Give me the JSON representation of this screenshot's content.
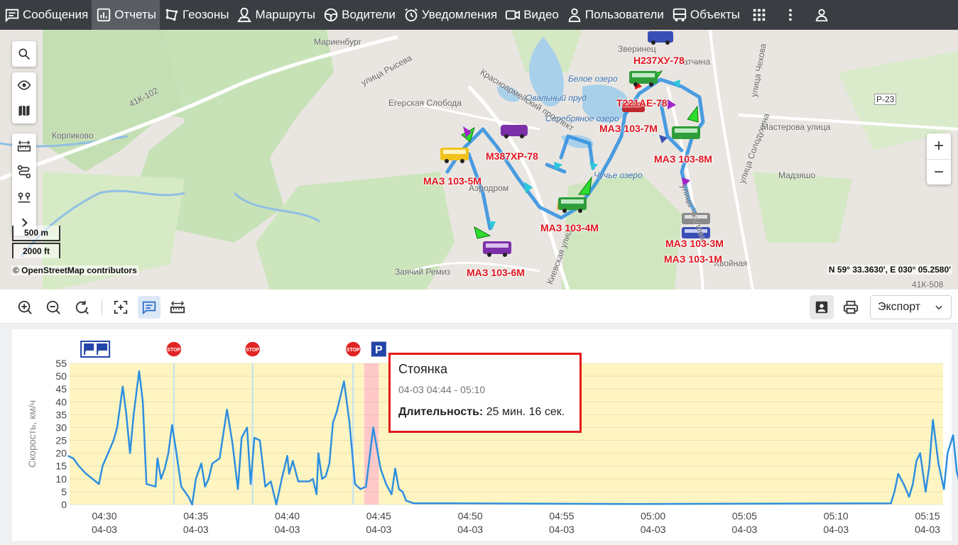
{
  "nav": {
    "items": [
      {
        "label": "Сообщения",
        "icon": "messages-icon"
      },
      {
        "label": "Отчеты",
        "icon": "reports-icon",
        "active": true
      },
      {
        "label": "Геозоны",
        "icon": "geozones-icon"
      },
      {
        "label": "Маршруты",
        "icon": "routes-icon"
      },
      {
        "label": "Водители",
        "icon": "drivers-icon"
      },
      {
        "label": "Уведомления",
        "icon": "alarm-clock-icon"
      },
      {
        "label": "Видео",
        "icon": "video-icon"
      },
      {
        "label": "Пользователи",
        "icon": "user-icon"
      },
      {
        "label": "Объекты",
        "icon": "bus-icon"
      }
    ],
    "extra_icons": [
      "apps-grid-icon",
      "more-vertical-icon",
      "account-icon"
    ]
  },
  "map": {
    "place_labels": [
      "Мариенбург",
      "улица Рысева",
      "41К-102",
      "Корпиково",
      "Егерская Слобода",
      "Овальный пруд",
      "Серебряное озеро",
      "Красноармейский проспект",
      "Белое озеро",
      "Мастерова улица",
      "улица Солодухина",
      "улица Чкалова",
      "Заячий Ремиз",
      "Р-23",
      "41К-508",
      "Зверинец",
      "улица Чехова",
      "Гатчина",
      "Киевская улица",
      "Аэродром",
      "Чучье озеро",
      "Мадзяшо",
      "Хвойная"
    ],
    "vehicles": [
      {
        "label": "Н237ХУ-78",
        "color": "#3a4fb5"
      },
      {
        "label": "Т221АЕ-78",
        "color": "#c0262e"
      },
      {
        "label": "МАЗ 103-7М",
        "color": "#2f9d3a"
      },
      {
        "label": "М387ХР-78",
        "color": "#7b2fa8"
      },
      {
        "label": "МАЗ 103-8М",
        "color": "#2f9d3a"
      },
      {
        "label": "МАЗ 103-5М",
        "color": "#f2c21c"
      },
      {
        "label": "МАЗ 103-4М",
        "color": "#2f9d3a"
      },
      {
        "label": "МАЗ 103-3М",
        "color": "#3a4fb5"
      },
      {
        "label": "МАЗ 103-1М",
        "color": "#888888"
      },
      {
        "label": "МАЗ 103-6М",
        "color": "#7b2fa8"
      }
    ],
    "scale_m": "500 m",
    "scale_ft": "2000 ft",
    "attribution": "© OpenStreetMap contributors",
    "coords": "N 59° 33.3630', E 030° 05.2580'",
    "zoom_in": "+",
    "zoom_out": "−",
    "controls": [
      "search-icon",
      "eye-icon",
      "map-icon",
      "ruler-icon",
      "route-icon",
      "pins-icon",
      "chevron-right-icon"
    ]
  },
  "toolbar": {
    "buttons": [
      "zoom-in-icon",
      "zoom-out-icon",
      "reset-icon",
      "select-area-icon",
      "comment-icon",
      "ruler-icon"
    ],
    "right_icons": [
      "contact-card-icon",
      "printer-icon"
    ],
    "export_label": "Экспорт"
  },
  "chart_data": {
    "type": "line",
    "title": "",
    "xlabel": "",
    "ylabel": "Скорость, км/ч",
    "ylim": [
      0,
      55
    ],
    "yticks": [
      0,
      5,
      10,
      15,
      20,
      25,
      30,
      35,
      40,
      45,
      50,
      55
    ],
    "xlim": [
      "04:28",
      "05:16"
    ],
    "xticks": [
      {
        "time": "04:30",
        "date": "04-03"
      },
      {
        "time": "04:35",
        "date": "04-03"
      },
      {
        "time": "04:40",
        "date": "04-03"
      },
      {
        "time": "04:45",
        "date": "04-03"
      },
      {
        "time": "04:50",
        "date": "04-03"
      },
      {
        "time": "04:55",
        "date": "04-03"
      },
      {
        "time": "05:00",
        "date": "04-03"
      },
      {
        "time": "05:05",
        "date": "04-03"
      },
      {
        "time": "05:10",
        "date": "04-03"
      },
      {
        "time": "05:15",
        "date": "04-03"
      }
    ],
    "grid": true,
    "line_color": "#2e8fe0",
    "trip_background": "#fff5c2",
    "selected_interval": {
      "start": "04:44.2",
      "end": "04:45.0",
      "color": "#ffc9c9"
    },
    "markers": [
      {
        "type": "flags",
        "time": "04:29.5"
      },
      {
        "type": "stop",
        "time": "04:33.8"
      },
      {
        "type": "stop",
        "time": "04:38.1"
      },
      {
        "type": "stop",
        "time": "04:43.6"
      },
      {
        "type": "parking",
        "time": "04:45.0"
      }
    ],
    "series": [
      {
        "points": [
          [
            "04:28.0",
            19
          ],
          [
            "04:28.3",
            18
          ],
          [
            "04:28.6",
            15
          ],
          [
            "04:29.0",
            12
          ],
          [
            "04:29.7",
            8
          ],
          [
            "04:29.9",
            15
          ],
          [
            "04:30.2",
            20
          ],
          [
            "04:30.5",
            25
          ],
          [
            "04:30.7",
            30
          ],
          [
            "04:31.0",
            46
          ],
          [
            "04:31.2",
            35
          ],
          [
            "04:31.4",
            20
          ],
          [
            "04:31.6",
            35
          ],
          [
            "04:31.9",
            52
          ],
          [
            "04:32.1",
            40
          ],
          [
            "04:32.3",
            8
          ],
          [
            "04:32.8",
            7
          ],
          [
            "04:32.9",
            18
          ],
          [
            "04:33.1",
            10
          ],
          [
            "04:33.3",
            14
          ],
          [
            "04:33.5",
            20
          ],
          [
            "04:33.7",
            31
          ],
          [
            "04:33.9",
            22
          ],
          [
            "04:34.2",
            7
          ],
          [
            "04:34.6",
            3
          ],
          [
            "04:34.8",
            0
          ],
          [
            "04:35.0",
            10
          ],
          [
            "04:35.3",
            16
          ],
          [
            "04:35.5",
            7
          ],
          [
            "04:35.7",
            10
          ],
          [
            "04:35.9",
            16
          ],
          [
            "04:36.3",
            18
          ],
          [
            "04:36.7",
            37
          ],
          [
            "04:37.0",
            24
          ],
          [
            "04:37.3",
            6
          ],
          [
            "04:37.5",
            26
          ],
          [
            "04:37.8",
            30
          ],
          [
            "04:38.0",
            8
          ],
          [
            "04:38.2",
            26
          ],
          [
            "04:38.5",
            25
          ],
          [
            "04:38.8",
            7
          ],
          [
            "04:39.1",
            9
          ],
          [
            "04:39.4",
            0
          ],
          [
            "04:39.7",
            10
          ],
          [
            "04:40.0",
            19
          ],
          [
            "04:40.1",
            12
          ],
          [
            "04:40.3",
            17
          ],
          [
            "04:40.6",
            9
          ],
          [
            "04:40.9",
            9
          ],
          [
            "04:41.2",
            9
          ],
          [
            "04:41.4",
            10
          ],
          [
            "04:41.6",
            4
          ],
          [
            "04:41.7",
            20
          ],
          [
            "04:41.9",
            10
          ],
          [
            "04:42.1",
            11
          ],
          [
            "04:42.3",
            16
          ],
          [
            "04:42.5",
            32
          ],
          [
            "04:42.7",
            36
          ],
          [
            "04:43.1",
            48
          ],
          [
            "04:43.4",
            32
          ],
          [
            "04:43.7",
            8
          ],
          [
            "04:44.0",
            6
          ],
          [
            "04:44.3",
            7
          ],
          [
            "04:44.7",
            30
          ],
          [
            "04:45.1",
            14
          ],
          [
            "04:45.4",
            8
          ],
          [
            "04:45.7",
            4
          ],
          [
            "04:45.9",
            14
          ],
          [
            "04:46.1",
            6
          ],
          [
            "04:46.3",
            5
          ],
          [
            "04:46.5",
            1.5
          ],
          [
            "04:46.9",
            0.5
          ],
          [
            "04:47.0",
            0.5
          ],
          [
            "04:48.5",
            0.5
          ],
          [
            "04:59.0",
            0.2
          ],
          [
            "05:13.0",
            0.5
          ],
          [
            "05:13.2",
            5
          ],
          [
            "05:13.4",
            12
          ],
          [
            "05:13.7",
            8
          ],
          [
            "05:14.0",
            3
          ],
          [
            "05:14.2",
            8
          ],
          [
            "05:14.4",
            17
          ],
          [
            "05:14.6",
            20
          ],
          [
            "05:14.9",
            5
          ],
          [
            "05:15.1",
            15
          ],
          [
            "05:15.3",
            33
          ],
          [
            "05:15.6",
            16
          ],
          [
            "05:15.9",
            6
          ],
          [
            "05:16.1",
            20
          ],
          [
            "05:16.4",
            27
          ],
          [
            "05:16.6",
            13
          ],
          [
            "05:16.8",
            7
          ],
          [
            "05:17.1",
            19
          ],
          [
            "05:17.3",
            10
          ],
          [
            "05:17.6",
            8
          ],
          [
            "05:17.9",
            12
          ],
          [
            "05:18.2",
            15
          ],
          [
            "05:18.5",
            14
          ],
          [
            "05:18.8",
            24
          ],
          [
            "05:18.9",
            18
          ],
          [
            "05:19.0",
            25
          ]
        ]
      }
    ]
  },
  "tooltip": {
    "title": "Стоянка",
    "time_range": "04-03 04:44 - 05:10",
    "duration_label": "Длительность:",
    "duration_value": "25 мин. 16 сек."
  }
}
